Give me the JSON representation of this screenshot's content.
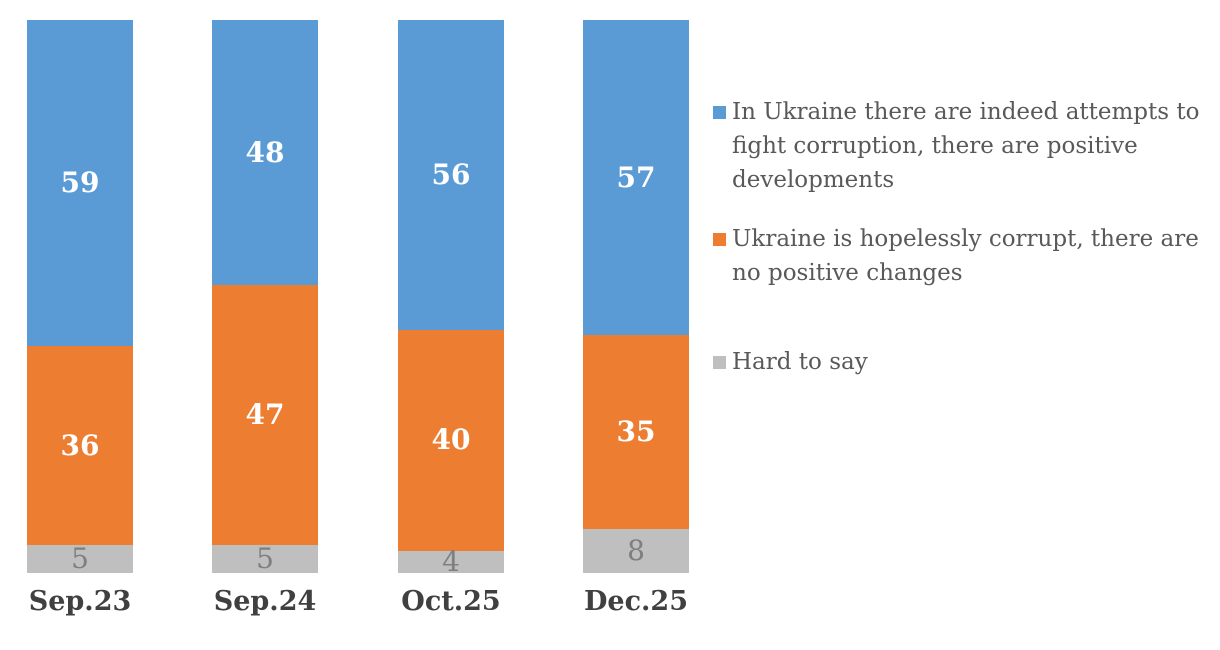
{
  "chart_data": {
    "type": "bar",
    "variant": "stacked-column",
    "stack_total": 100,
    "ylim": [
      0,
      100
    ],
    "grid": false,
    "legend_position": "right",
    "categories": [
      "Sep.23",
      "Sep.24",
      "Oct.25",
      "Dec.25"
    ],
    "series": [
      {
        "name": "In Ukraine there are indeed attempts to fight corruption, there are positive developments",
        "values": [
          59,
          48,
          56,
          57
        ],
        "color": "#5B9BD5",
        "value_label_color": "#FFFFFF",
        "value_label_bold": true
      },
      {
        "name": "Ukraine is hopelessly corrupt, there are no positive changes",
        "values": [
          36,
          47,
          40,
          35
        ],
        "color": "#ED7D31",
        "value_label_color": "#FFFFFF",
        "value_label_bold": true
      },
      {
        "name": "Hard to say",
        "values": [
          5,
          5,
          4,
          8
        ],
        "color": "#BFBFBF",
        "value_label_color": "#7F7F7F",
        "value_label_bold": false
      }
    ],
    "axis_label_color": "#404040",
    "legend_text_color": "#595959",
    "background_color": "#FFFFFF"
  }
}
